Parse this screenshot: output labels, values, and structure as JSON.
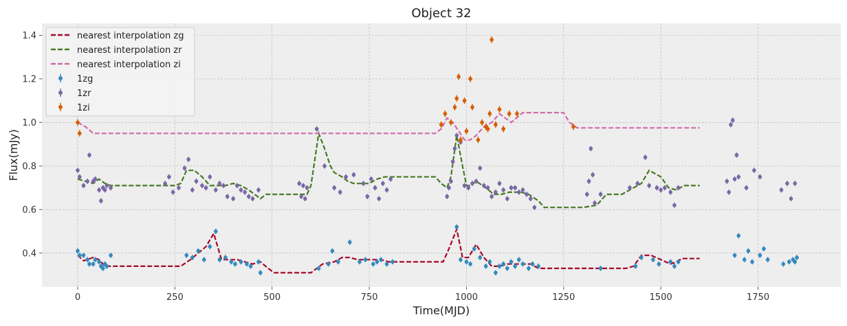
{
  "chart_data": {
    "type": "scatter",
    "title": "Object 32",
    "xlabel": "Time(MJD)",
    "ylabel": "Flux(mJy)",
    "xlim": [
      -92,
      1963
    ],
    "ylim": [
      0.245,
      1.455
    ],
    "grid": true,
    "legend_position": "top-left",
    "x_ticks": [
      0,
      250,
      500,
      750,
      1000,
      1250,
      1500,
      1750
    ],
    "x_tick_labels": [
      "0",
      "250",
      "500",
      "750",
      "1000",
      "1250",
      "1500",
      "1750"
    ],
    "y_ticks": [
      0.4,
      0.6,
      0.8,
      1.0,
      1.2,
      1.4
    ],
    "y_tick_labels": [
      "0.4",
      "0.6",
      "0.8",
      "1.0",
      "1.2",
      "1.4"
    ],
    "lines": [
      {
        "name": "nearest interpolation zg",
        "color": "#A60628",
        "x": [
          0,
          15,
          40,
          55,
          70,
          85,
          265,
          290,
          330,
          350,
          370,
          410,
          430,
          450,
          470,
          490,
          505,
          525,
          600,
          615,
          630,
          660,
          680,
          700,
          720,
          740,
          760,
          780,
          800,
          820,
          940,
          955,
          975,
          990,
          1005,
          1025,
          1045,
          1065,
          1085,
          1105,
          1135,
          1165,
          1185,
          1205,
          1410,
          1430,
          1450,
          1475,
          1500,
          1525,
          1540,
          1555,
          1600
        ],
        "y": [
          0.39,
          0.365,
          0.38,
          0.37,
          0.34,
          0.34,
          0.34,
          0.37,
          0.43,
          0.49,
          0.37,
          0.37,
          0.36,
          0.35,
          0.36,
          0.33,
          0.31,
          0.31,
          0.31,
          0.33,
          0.35,
          0.36,
          0.38,
          0.38,
          0.37,
          0.37,
          0.37,
          0.37,
          0.36,
          0.36,
          0.36,
          0.42,
          0.51,
          0.38,
          0.38,
          0.44,
          0.38,
          0.34,
          0.34,
          0.35,
          0.35,
          0.35,
          0.33,
          0.33,
          0.33,
          0.34,
          0.39,
          0.39,
          0.37,
          0.35,
          0.36,
          0.375,
          0.375
        ]
      },
      {
        "name": "nearest interpolation zr",
        "color": "#467821",
        "x": [
          0,
          20,
          40,
          55,
          70,
          85,
          100,
          250,
          265,
          280,
          300,
          320,
          340,
          380,
          400,
          420,
          440,
          455,
          470,
          485,
          500,
          520,
          590,
          600,
          620,
          635,
          650,
          660,
          680,
          695,
          710,
          730,
          750,
          770,
          790,
          810,
          920,
          935,
          950,
          960,
          975,
          990,
          1000,
          1010,
          1025,
          1050,
          1070,
          1090,
          1110,
          1140,
          1160,
          1185,
          1200,
          1250,
          1300,
          1335,
          1360,
          1400,
          1430,
          1450,
          1470,
          1500,
          1520,
          1540,
          1560,
          1600
        ],
        "y": [
          0.74,
          0.73,
          0.72,
          0.74,
          0.72,
          0.71,
          0.71,
          0.71,
          0.72,
          0.78,
          0.78,
          0.75,
          0.71,
          0.71,
          0.72,
          0.71,
          0.69,
          0.67,
          0.65,
          0.67,
          0.67,
          0.67,
          0.67,
          0.71,
          0.95,
          0.88,
          0.8,
          0.77,
          0.75,
          0.73,
          0.72,
          0.72,
          0.72,
          0.74,
          0.75,
          0.75,
          0.75,
          0.72,
          0.7,
          0.75,
          0.94,
          0.8,
          0.71,
          0.71,
          0.73,
          0.7,
          0.67,
          0.67,
          0.68,
          0.68,
          0.67,
          0.64,
          0.61,
          0.61,
          0.61,
          0.62,
          0.67,
          0.67,
          0.7,
          0.72,
          0.78,
          0.75,
          0.7,
          0.69,
          0.71,
          0.71
        ]
      },
      {
        "name": "nearest interpolation zi",
        "color": "#CF6BA9",
        "x": [
          0,
          20,
          40,
          920,
          935,
          950,
          965,
          980,
          995,
          1010,
          1025,
          1045,
          1065,
          1085,
          1100,
          1115,
          1145,
          1250,
          1265,
          1285,
          1600
        ],
        "y": [
          1.0,
          0.98,
          0.95,
          0.95,
          0.97,
          1.02,
          1.0,
          0.96,
          0.92,
          0.92,
          0.94,
          0.98,
          1.0,
          1.04,
          1.02,
          1.0,
          1.045,
          1.045,
          1.0,
          0.975,
          0.975
        ]
      }
    ],
    "series": [
      {
        "name": "1zg",
        "color": "#348ABD",
        "x": [
          0,
          5,
          15,
          25,
          30,
          40,
          45,
          55,
          60,
          65,
          70,
          75,
          85,
          280,
          295,
          310,
          325,
          340,
          355,
          365,
          380,
          395,
          405,
          420,
          435,
          445,
          465,
          470,
          620,
          645,
          655,
          670,
          700,
          725,
          740,
          760,
          770,
          780,
          795,
          810,
          975,
          985,
          1000,
          1010,
          1020,
          1035,
          1050,
          1060,
          1075,
          1085,
          1095,
          1105,
          1115,
          1125,
          1135,
          1145,
          1160,
          1170,
          1185,
          1345,
          1435,
          1450,
          1480,
          1495,
          1525,
          1535,
          1545,
          1690,
          1700,
          1715,
          1725,
          1735,
          1755,
          1765,
          1775,
          1815,
          1830,
          1840,
          1845,
          1850
        ],
        "y": [
          0.41,
          0.39,
          0.39,
          0.37,
          0.35,
          0.35,
          0.37,
          0.36,
          0.34,
          0.33,
          0.35,
          0.34,
          0.39,
          0.39,
          0.38,
          0.41,
          0.37,
          0.43,
          0.5,
          0.37,
          0.38,
          0.36,
          0.35,
          0.36,
          0.35,
          0.34,
          0.36,
          0.31,
          0.33,
          0.35,
          0.41,
          0.36,
          0.45,
          0.36,
          0.37,
          0.35,
          0.36,
          0.37,
          0.35,
          0.36,
          0.52,
          0.37,
          0.36,
          0.35,
          0.42,
          0.38,
          0.34,
          0.36,
          0.31,
          0.34,
          0.35,
          0.33,
          0.36,
          0.34,
          0.37,
          0.35,
          0.33,
          0.35,
          0.34,
          0.33,
          0.34,
          0.38,
          0.37,
          0.35,
          0.36,
          0.34,
          0.36,
          0.39,
          0.48,
          0.37,
          0.41,
          0.36,
          0.39,
          0.42,
          0.37,
          0.35,
          0.36,
          0.37,
          0.36,
          0.38
        ],
        "errors": [
          0.012,
          0.012,
          0.012,
          0.012,
          0.012,
          0.012,
          0.012,
          0.012,
          0.012,
          0.012,
          0.012,
          0.012,
          0.012,
          0.012,
          0.012,
          0.012,
          0.012,
          0.012,
          0.012,
          0.012,
          0.012,
          0.012,
          0.012,
          0.012,
          0.012,
          0.012,
          0.012,
          0.012,
          0.012,
          0.012,
          0.012,
          0.012,
          0.012,
          0.012,
          0.012,
          0.012,
          0.012,
          0.012,
          0.012,
          0.012,
          0.012,
          0.012,
          0.012,
          0.012,
          0.012,
          0.012,
          0.012,
          0.012,
          0.012,
          0.012,
          0.012,
          0.012,
          0.012,
          0.012,
          0.012,
          0.012,
          0.012,
          0.012,
          0.012,
          0.012,
          0.012,
          0.012,
          0.012,
          0.012,
          0.012,
          0.012,
          0.012,
          0.012,
          0.012,
          0.012,
          0.012,
          0.012,
          0.012,
          0.012,
          0.012,
          0.012,
          0.012,
          0.012,
          0.012,
          0.012
        ]
      },
      {
        "name": "1zr",
        "color": "#7A68A6",
        "x": [
          0,
          5,
          15,
          25,
          30,
          40,
          45,
          55,
          60,
          65,
          70,
          75,
          85,
          225,
          235,
          245,
          260,
          275,
          285,
          295,
          305,
          320,
          330,
          340,
          355,
          365,
          375,
          385,
          400,
          410,
          420,
          430,
          440,
          450,
          465,
          570,
          575,
          580,
          585,
          590,
          615,
          635,
          660,
          675,
          690,
          710,
          735,
          745,
          755,
          765,
          775,
          785,
          795,
          805,
          950,
          955,
          960,
          965,
          970,
          975,
          985,
          995,
          1005,
          1015,
          1025,
          1035,
          1045,
          1055,
          1065,
          1075,
          1085,
          1095,
          1105,
          1115,
          1125,
          1135,
          1145,
          1155,
          1165,
          1175,
          1310,
          1315,
          1320,
          1325,
          1330,
          1345,
          1420,
          1440,
          1460,
          1470,
          1490,
          1500,
          1510,
          1525,
          1535,
          1545,
          1670,
          1675,
          1680,
          1685,
          1690,
          1695,
          1700,
          1720,
          1740,
          1755,
          1810,
          1825,
          1835,
          1845
        ],
        "y": [
          0.78,
          0.75,
          0.71,
          0.73,
          0.85,
          0.73,
          0.74,
          0.69,
          0.64,
          0.7,
          0.69,
          0.71,
          0.7,
          0.72,
          0.75,
          0.68,
          0.7,
          0.79,
          0.83,
          0.69,
          0.73,
          0.71,
          0.7,
          0.75,
          0.69,
          0.72,
          0.71,
          0.66,
          0.65,
          0.71,
          0.69,
          0.68,
          0.66,
          0.65,
          0.69,
          0.72,
          0.66,
          0.71,
          0.65,
          0.7,
          0.97,
          0.8,
          0.7,
          0.68,
          0.75,
          0.76,
          0.72,
          0.66,
          0.74,
          0.7,
          0.65,
          0.72,
          0.69,
          0.74,
          0.66,
          0.7,
          0.73,
          0.82,
          0.88,
          0.94,
          0.91,
          0.71,
          0.7,
          0.72,
          0.73,
          0.79,
          0.71,
          0.7,
          0.66,
          0.68,
          0.72,
          0.69,
          0.65,
          0.7,
          0.7,
          0.68,
          0.69,
          0.67,
          0.65,
          0.61,
          0.67,
          0.73,
          0.88,
          0.76,
          0.63,
          0.67,
          0.7,
          0.72,
          0.84,
          0.71,
          0.7,
          0.69,
          0.7,
          0.68,
          0.62,
          0.7,
          0.73,
          0.68,
          0.99,
          1.01,
          0.74,
          0.85,
          0.75,
          0.7,
          0.78,
          0.75,
          0.69,
          0.72,
          0.65,
          0.72
        ],
        "errors": [
          0.012,
          0.012,
          0.012,
          0.012,
          0.012,
          0.012,
          0.012,
          0.012,
          0.012,
          0.012,
          0.012,
          0.012,
          0.012,
          0.012,
          0.012,
          0.012,
          0.012,
          0.012,
          0.012,
          0.012,
          0.012,
          0.012,
          0.012,
          0.012,
          0.012,
          0.012,
          0.012,
          0.012,
          0.012,
          0.012,
          0.012,
          0.012,
          0.012,
          0.012,
          0.012,
          0.012,
          0.012,
          0.012,
          0.012,
          0.012,
          0.012,
          0.012,
          0.012,
          0.012,
          0.012,
          0.012,
          0.012,
          0.012,
          0.012,
          0.012,
          0.012,
          0.012,
          0.012,
          0.012,
          0.012,
          0.012,
          0.012,
          0.012,
          0.012,
          0.012,
          0.012,
          0.012,
          0.012,
          0.012,
          0.012,
          0.012,
          0.012,
          0.012,
          0.012,
          0.012,
          0.012,
          0.012,
          0.012,
          0.012,
          0.012,
          0.012,
          0.012,
          0.012,
          0.012,
          0.012,
          0.012,
          0.012,
          0.012,
          0.012,
          0.012,
          0.012,
          0.012,
          0.012,
          0.012,
          0.012,
          0.012,
          0.012,
          0.012,
          0.012,
          0.012,
          0.012,
          0.012,
          0.012,
          0.012,
          0.012,
          0.012,
          0.012,
          0.012,
          0.012,
          0.012,
          0.012,
          0.012,
          0.012,
          0.012,
          0.012
        ]
      },
      {
        "name": "1zi",
        "color": "#D55E00",
        "x": [
          0,
          5,
          935,
          945,
          960,
          970,
          975,
          980,
          985,
          995,
          1000,
          1010,
          1015,
          1030,
          1040,
          1050,
          1055,
          1060,
          1065,
          1075,
          1085,
          1095,
          1110,
          1130,
          1275
        ],
        "y": [
          1.0,
          0.95,
          0.99,
          1.04,
          1.0,
          1.07,
          1.11,
          1.21,
          0.92,
          1.1,
          0.96,
          1.2,
          1.07,
          0.92,
          1.0,
          0.98,
          0.97,
          1.04,
          1.38,
          0.99,
          1.06,
          0.97,
          1.04,
          1.04,
          0.98
        ],
        "errors": [
          0.015,
          0.015,
          0.015,
          0.015,
          0.015,
          0.015,
          0.015,
          0.015,
          0.015,
          0.015,
          0.015,
          0.015,
          0.015,
          0.015,
          0.015,
          0.015,
          0.015,
          0.015,
          0.015,
          0.015,
          0.015,
          0.015,
          0.015,
          0.015,
          0.015
        ]
      }
    ]
  }
}
